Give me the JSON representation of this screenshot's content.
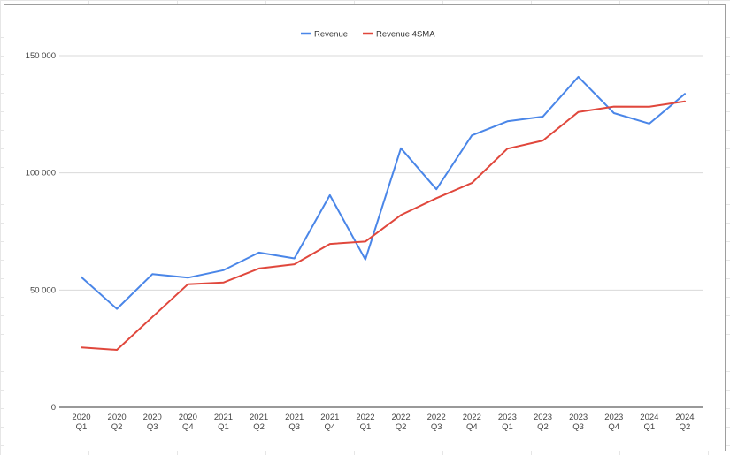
{
  "chart_data": {
    "type": "line",
    "title": "",
    "xlabel": "",
    "ylabel": "",
    "ylim": [
      0,
      150000
    ],
    "yticks": [
      0,
      50000,
      100000,
      150000
    ],
    "ytick_labels": [
      "0",
      "50 000",
      "100 000",
      "150 000"
    ],
    "grid": true,
    "legend_position": "top-center",
    "categories": [
      [
        "2020",
        "Q1"
      ],
      [
        "2020",
        "Q2"
      ],
      [
        "2020",
        "Q3"
      ],
      [
        "2020",
        "Q4"
      ],
      [
        "2021",
        "Q1"
      ],
      [
        "2021",
        "Q2"
      ],
      [
        "2021",
        "Q3"
      ],
      [
        "2021",
        "Q4"
      ],
      [
        "2022",
        "Q1"
      ],
      [
        "2022",
        "Q2"
      ],
      [
        "2022",
        "Q3"
      ],
      [
        "2022",
        "Q4"
      ],
      [
        "2023",
        "Q1"
      ],
      [
        "2023",
        "Q2"
      ],
      [
        "2023",
        "Q3"
      ],
      [
        "2023",
        "Q4"
      ],
      [
        "2024",
        "Q1"
      ],
      [
        "2024",
        "Q2"
      ]
    ],
    "series": [
      {
        "name": "Revenue",
        "color": "#4a86e8",
        "values": [
          55500,
          42000,
          56800,
          55300,
          58500,
          66000,
          63500,
          90500,
          63000,
          110500,
          93000,
          116000,
          122000,
          124000,
          141000,
          125500,
          121000,
          133700
        ]
      },
      {
        "name": "Revenue 4SMA",
        "color": "#e0473c",
        "values": [
          25500,
          24500,
          38500,
          52500,
          53200,
          59200,
          61000,
          69700,
          70700,
          82000,
          89200,
          95700,
          110300,
          113800,
          126000,
          128300,
          128200,
          130500
        ]
      }
    ]
  }
}
